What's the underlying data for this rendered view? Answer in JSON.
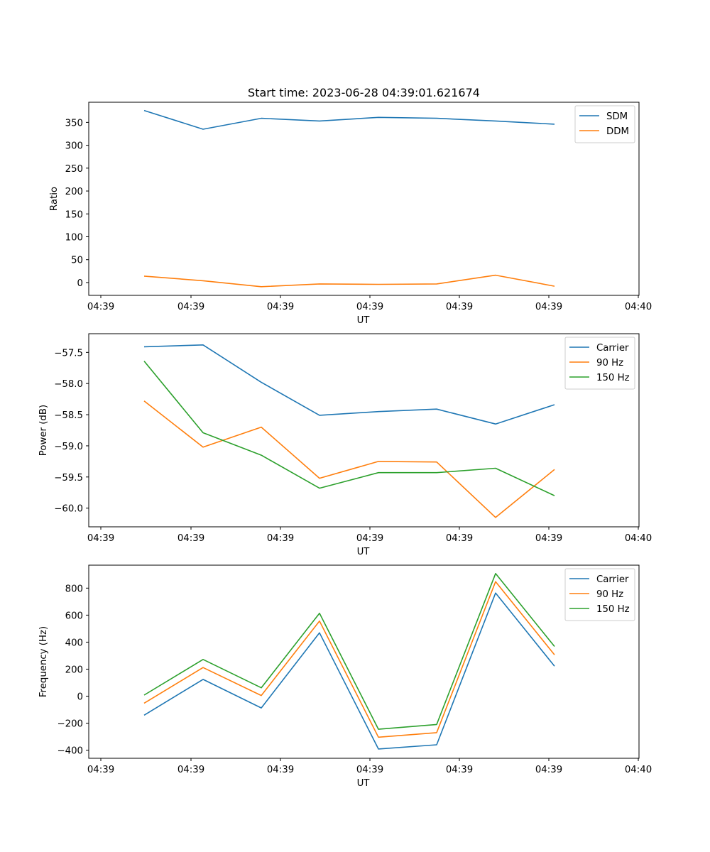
{
  "chart_data": [
    {
      "type": "line",
      "title": "Start time: 2023-06-28 04:39:01.621674",
      "xlabel": "UT",
      "ylabel": "Ratio",
      "x_tick_labels": [
        "04:39",
        "04:39",
        "04:39",
        "04:39",
        "04:39",
        "04:39",
        "04:40"
      ],
      "y_ticks": [
        0,
        50,
        100,
        150,
        200,
        250,
        300,
        350
      ],
      "ylim": [
        -28,
        394
      ],
      "legend_position": "top-right",
      "grid": false,
      "series": [
        {
          "name": "SDM",
          "color": "#1f77b4",
          "values": [
            376,
            335,
            359,
            353,
            361,
            359,
            353,
            346
          ]
        },
        {
          "name": "DDM",
          "color": "#ff7f0e",
          "values": [
            14,
            4,
            -9,
            -3,
            -4,
            -3,
            16,
            -8
          ]
        }
      ]
    },
    {
      "type": "line",
      "title": "",
      "xlabel": "UT",
      "ylabel": "Power (dB)",
      "x_tick_labels": [
        "04:39",
        "04:39",
        "04:39",
        "04:39",
        "04:39",
        "04:39",
        "04:40"
      ],
      "y_ticks": [
        -57.5,
        -58.0,
        -58.5,
        -59.0,
        -59.5,
        -60.0
      ],
      "y_tick_labels": [
        "−57.5",
        "−58.0",
        "−58.5",
        "−59.0",
        "−59.5",
        "−60.0"
      ],
      "ylim": [
        -60.3,
        -57.2
      ],
      "legend_position": "top-right",
      "grid": false,
      "series": [
        {
          "name": "Carrier",
          "color": "#1f77b4",
          "values": [
            -57.41,
            -57.38,
            -57.98,
            -58.51,
            -58.45,
            -58.41,
            -58.65,
            -58.34
          ]
        },
        {
          "name": "90 Hz",
          "color": "#ff7f0e",
          "values": [
            -58.28,
            -59.02,
            -58.7,
            -59.52,
            -59.25,
            -59.26,
            -60.15,
            -59.38
          ]
        },
        {
          "name": "150 Hz",
          "color": "#2ca02c",
          "values": [
            -57.64,
            -58.79,
            -59.15,
            -59.68,
            -59.43,
            -59.43,
            -59.36,
            -59.8
          ]
        }
      ]
    },
    {
      "type": "line",
      "title": "",
      "xlabel": "UT",
      "ylabel": "Frequency (Hz)",
      "x_tick_labels": [
        "04:39",
        "04:39",
        "04:39",
        "04:39",
        "04:39",
        "04:39",
        "04:40"
      ],
      "y_ticks": [
        -400,
        -200,
        0,
        200,
        400,
        600,
        800
      ],
      "y_tick_labels": [
        "−400",
        "−200",
        "0",
        "200",
        "400",
        "600",
        "800"
      ],
      "ylim": [
        -460,
        970
      ],
      "legend_position": "top-right",
      "grid": false,
      "series": [
        {
          "name": "Carrier",
          "color": "#1f77b4",
          "values": [
            -141,
            124,
            -87,
            469,
            -391,
            -360,
            764,
            222
          ]
        },
        {
          "name": "90 Hz",
          "color": "#ff7f0e",
          "values": [
            -52,
            212,
            5,
            556,
            -304,
            -270,
            848,
            306
          ]
        },
        {
          "name": "150 Hz",
          "color": "#2ca02c",
          "values": [
            8,
            272,
            62,
            614,
            -245,
            -210,
            908,
            368
          ]
        }
      ]
    }
  ]
}
